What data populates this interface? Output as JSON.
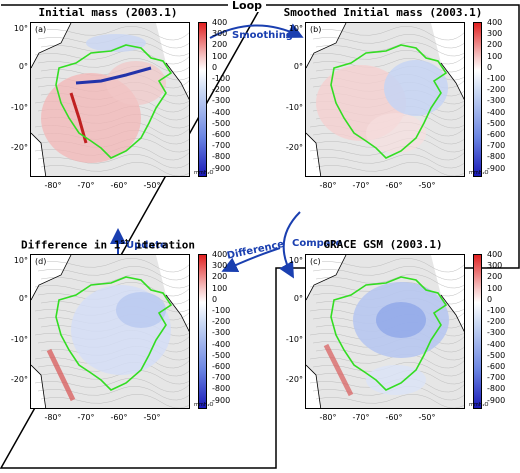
{
  "loop_label": "Loop",
  "arrows": {
    "smoothing": "Smoothing",
    "update": "Update",
    "difference": "Difference",
    "compare": "Compare"
  },
  "panels": [
    {
      "letter": "(a)",
      "title_main": "Initial mass (2003.1)",
      "title_sup": ""
    },
    {
      "letter": "(b)",
      "title_main": "Smoothed Initial mass (2003.1)",
      "title_sup": ""
    },
    {
      "letter": "(d)",
      "title_main": "Difference in 1",
      "title_sup": "st",
      "title_tail": " iteration"
    },
    {
      "letter": "(c)",
      "title_main": "GRACE GSM (2003.1)",
      "title_sup": ""
    }
  ],
  "y_ticks": [
    "10°",
    "0°",
    "-10°",
    "-20°"
  ],
  "x_ticks": [
    "-80°",
    "-70°",
    "-60°",
    "-50°"
  ],
  "colorbar": {
    "ticks": [
      "400",
      "300",
      "200",
      "100",
      "0",
      "-100",
      "-200",
      "-300",
      "-400",
      "-500",
      "-600",
      "-700",
      "-800",
      "-900"
    ],
    "unit": "mmH₂O",
    "max_color": "#e02020",
    "mid_color": "#ffffff",
    "min_color": "#1a1ab8"
  },
  "colors": {
    "arrow": "#1a3fb0",
    "basin_outline": "#33dd22"
  }
}
